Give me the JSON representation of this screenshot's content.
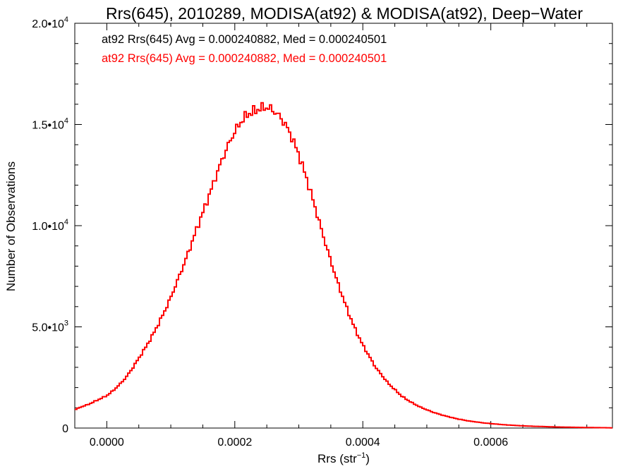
{
  "chart_data": {
    "type": "line",
    "style": "step-histogram",
    "title": "Rrs(645), 2010289, MODISA(at92) & MODISA(at92), Deep−Water",
    "xlabel": "Rrs (str",
    "xlabel_sup": "−1",
    "xlabel_suffix": ")",
    "ylabel": "Number of Observations",
    "xlim": [
      -5e-05,
      0.00079
    ],
    "ylim": [
      0,
      20000
    ],
    "x_ticks": [
      {
        "value": 0.0,
        "label": "0.0000"
      },
      {
        "value": 0.0002,
        "label": "0.0002"
      },
      {
        "value": 0.0004,
        "label": "0.0004"
      },
      {
        "value": 0.0006,
        "label": "0.0006"
      }
    ],
    "y_ticks": [
      {
        "value": 0,
        "mant": "0",
        "exp": ""
      },
      {
        "value": 5000,
        "mant": "5.0•10",
        "exp": "3"
      },
      {
        "value": 10000,
        "mant": "1.0•10",
        "exp": "4"
      },
      {
        "value": 15000,
        "mant": "1.5•10",
        "exp": "4"
      },
      {
        "value": 20000,
        "mant": "2.0•10",
        "exp": "4"
      }
    ],
    "legend": [
      {
        "text": "at92 Rrs(645) Avg = 0.000240882, Med = 0.000240501",
        "color": "#000000"
      },
      {
        "text": "at92 Rrs(645) Avg = 0.000240882, Med = 0.000240501",
        "color": "#ff0000"
      }
    ],
    "legend_placement": "top-left",
    "grid": false,
    "series": [
      {
        "color": "#ff0000",
        "points": [
          [
            -5e-05,
            900
          ],
          [
            -4e-05,
            1050
          ],
          [
            -3e-05,
            1150
          ],
          [
            -2e-05,
            1300
          ],
          [
            -1e-05,
            1450
          ],
          [
            0.0,
            1600
          ],
          [
            1e-05,
            1850
          ],
          [
            2e-05,
            2150
          ],
          [
            3e-05,
            2500
          ],
          [
            4e-05,
            2950
          ],
          [
            5e-05,
            3450
          ],
          [
            6e-05,
            3950
          ],
          [
            7e-05,
            4500
          ],
          [
            8e-05,
            5100
          ],
          [
            9e-05,
            5750
          ],
          [
            0.0001,
            6450
          ],
          [
            0.00011,
            7250
          ],
          [
            0.00012,
            8050
          ],
          [
            0.00013,
            8900
          ],
          [
            0.00014,
            9800
          ],
          [
            0.00015,
            10650
          ],
          [
            0.00016,
            11500
          ],
          [
            0.00017,
            12400
          ],
          [
            0.00018,
            13250
          ],
          [
            0.00019,
            14000
          ],
          [
            0.0002,
            14650
          ],
          [
            0.00021,
            15150
          ],
          [
            0.00022,
            15500
          ],
          [
            0.00023,
            15650
          ],
          [
            0.00024,
            15800
          ],
          [
            0.00025,
            15850
          ],
          [
            0.00026,
            15700
          ],
          [
            0.00027,
            15400
          ],
          [
            0.00028,
            14950
          ],
          [
            0.00029,
            14300
          ],
          [
            0.0003,
            13500
          ],
          [
            0.00031,
            12550
          ],
          [
            0.00032,
            11500
          ],
          [
            0.00033,
            10400
          ],
          [
            0.00034,
            9300
          ],
          [
            0.00035,
            8250
          ],
          [
            0.00036,
            7250
          ],
          [
            0.00037,
            6350
          ],
          [
            0.00038,
            5500
          ],
          [
            0.00039,
            4750
          ],
          [
            0.0004,
            4100
          ],
          [
            0.00041,
            3550
          ],
          [
            0.00042,
            3000
          ],
          [
            0.00043,
            2600
          ],
          [
            0.00044,
            2200
          ],
          [
            0.00045,
            1900
          ],
          [
            0.00046,
            1600
          ],
          [
            0.00047,
            1380
          ],
          [
            0.00048,
            1200
          ],
          [
            0.00049,
            1030
          ],
          [
            0.0005,
            900
          ],
          [
            0.00051,
            780
          ],
          [
            0.00052,
            680
          ],
          [
            0.00053,
            590
          ],
          [
            0.00054,
            510
          ],
          [
            0.00055,
            440
          ],
          [
            0.00056,
            380
          ],
          [
            0.00057,
            330
          ],
          [
            0.00058,
            290
          ],
          [
            0.00059,
            250
          ],
          [
            0.0006,
            220
          ],
          [
            0.00061,
            190
          ],
          [
            0.00062,
            165
          ],
          [
            0.00063,
            145
          ],
          [
            0.00064,
            125
          ],
          [
            0.00065,
            110
          ],
          [
            0.00066,
            95
          ],
          [
            0.00067,
            85
          ],
          [
            0.00068,
            75
          ],
          [
            0.00069,
            65
          ],
          [
            0.0007,
            55
          ],
          [
            0.00071,
            48
          ],
          [
            0.00072,
            42
          ],
          [
            0.00073,
            36
          ],
          [
            0.00074,
            31
          ],
          [
            0.00075,
            27
          ],
          [
            0.00076,
            23
          ],
          [
            0.00077,
            20
          ],
          [
            0.00078,
            16
          ],
          [
            0.00079,
            10
          ]
        ]
      }
    ]
  }
}
